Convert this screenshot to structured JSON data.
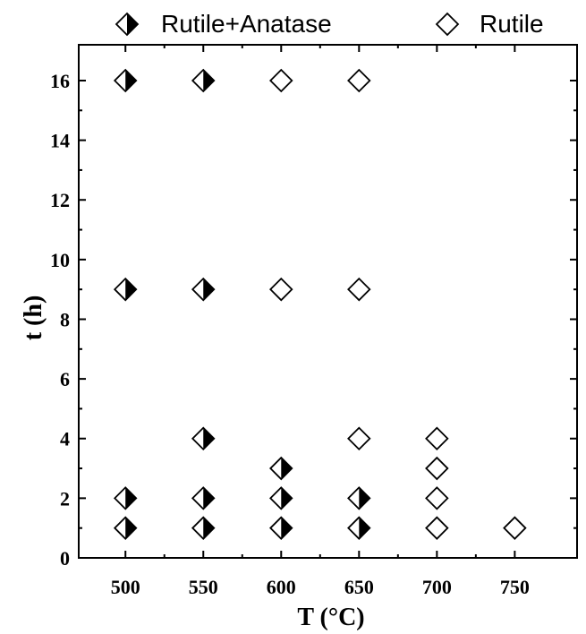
{
  "chart_data": {
    "type": "scatter",
    "xlabel": "T (°C)",
    "ylabel": "t (h)",
    "xlim": [
      470,
      790
    ],
    "ylim": [
      0,
      17.2
    ],
    "xticks": [
      500,
      550,
      600,
      650,
      700,
      750
    ],
    "yticks": [
      0,
      2,
      4,
      6,
      8,
      10,
      12,
      14,
      16
    ],
    "grid": false,
    "legend_position": "top",
    "series": [
      {
        "name": "Rutile+Anatase",
        "marker": "half-filled-diamond",
        "color": "#000000",
        "points": [
          {
            "x": 500,
            "y": 16
          },
          {
            "x": 550,
            "y": 16
          },
          {
            "x": 500,
            "y": 9
          },
          {
            "x": 550,
            "y": 9
          },
          {
            "x": 550,
            "y": 4
          },
          {
            "x": 600,
            "y": 3
          },
          {
            "x": 500,
            "y": 2
          },
          {
            "x": 550,
            "y": 2
          },
          {
            "x": 600,
            "y": 2
          },
          {
            "x": 650,
            "y": 2
          },
          {
            "x": 500,
            "y": 1
          },
          {
            "x": 550,
            "y": 1
          },
          {
            "x": 600,
            "y": 1
          },
          {
            "x": 650,
            "y": 1
          }
        ]
      },
      {
        "name": "Rutile",
        "marker": "open-diamond",
        "color": "#000000",
        "points": [
          {
            "x": 600,
            "y": 16
          },
          {
            "x": 650,
            "y": 16
          },
          {
            "x": 600,
            "y": 9
          },
          {
            "x": 650,
            "y": 9
          },
          {
            "x": 650,
            "y": 4
          },
          {
            "x": 700,
            "y": 4
          },
          {
            "x": 700,
            "y": 3
          },
          {
            "x": 700,
            "y": 2
          },
          {
            "x": 700,
            "y": 1
          },
          {
            "x": 750,
            "y": 1
          }
        ]
      }
    ]
  }
}
